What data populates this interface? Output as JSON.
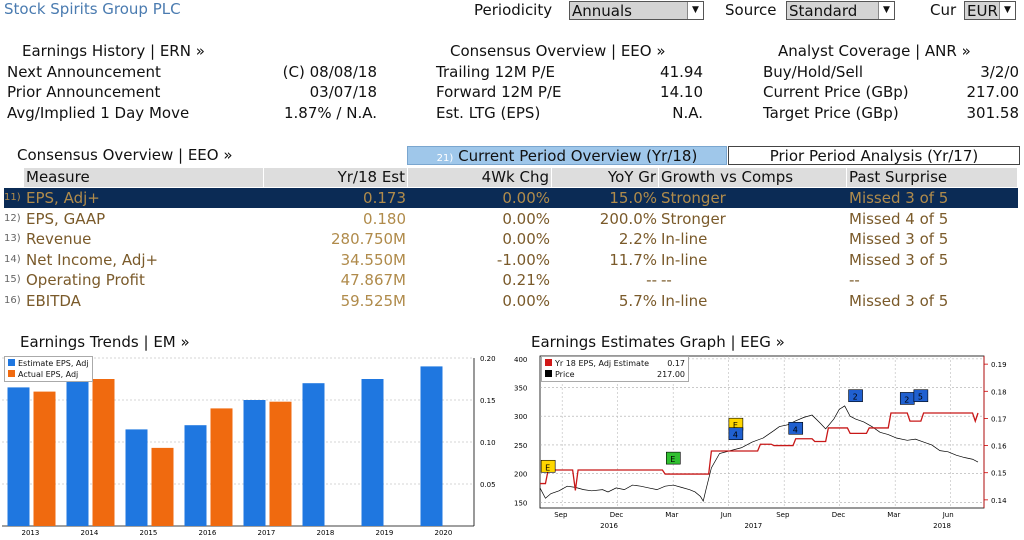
{
  "app_title": "Stock Spirits Group PLC",
  "controls": {
    "periodicity_label": "Periodicity",
    "periodicity_value": "Annuals",
    "source_label": "Source",
    "source_value": "Standard",
    "cur_label": "Cur",
    "cur_value": "EUR"
  },
  "earnings_history": {
    "header": "Earnings History | ERN »",
    "rows": [
      {
        "label": "Next Announcement",
        "value": "(C)  08/08/18"
      },
      {
        "label": "Prior Announcement",
        "value": "03/07/18"
      },
      {
        "label": "Avg/Implied 1 Day Move",
        "value": "1.87% / N.A."
      }
    ]
  },
  "consensus_top": {
    "header": "Consensus Overview | EEO »",
    "rows": [
      {
        "label": "Trailing 12M P/E",
        "value": "41.94"
      },
      {
        "label": "Forward 12M P/E",
        "value": "14.10"
      },
      {
        "label": "Est. LTG (EPS)",
        "value": "N.A."
      }
    ]
  },
  "analyst_coverage": {
    "header": "Analyst Coverage | ANR »",
    "rows": [
      {
        "label": "Buy/Hold/Sell",
        "value": "3/2/0"
      },
      {
        "label": "Current Price (GBp)",
        "value": "217.00"
      },
      {
        "label": "Target Price (GBp)",
        "value": "301.58"
      }
    ]
  },
  "consensus_table": {
    "section_label": "Consensus Overview | EEO »",
    "tab_current": "Current Period Overview (Yr/18)",
    "tab_current_num": "21)",
    "tab_prior": "Prior Period Analysis (Yr/17)",
    "columns": [
      "Measure",
      "Yr/18 Est",
      "4Wk Chg",
      "YoY Gr",
      "Growth vs Comps",
      "Past Surprise"
    ],
    "rows": [
      {
        "num": "11)",
        "measure": "EPS, Adj+",
        "est": "0.173",
        "chg": "0.00%",
        "yoy": "15.0%",
        "growth": "Stronger",
        "surprise": "Missed 3 of 5"
      },
      {
        "num": "12)",
        "measure": "EPS, GAAP",
        "est": "0.180",
        "chg": "0.00%",
        "yoy": "200.0%",
        "growth": "Stronger",
        "surprise": "Missed 4 of 5"
      },
      {
        "num": "13)",
        "measure": "Revenue",
        "est": "280.750M",
        "chg": "0.00%",
        "yoy": "2.2%",
        "growth": "In-line",
        "surprise": "Missed 3 of 5"
      },
      {
        "num": "14)",
        "measure": "Net Income, Adj+",
        "est": "34.550M",
        "chg": "-1.00%",
        "yoy": "11.7%",
        "growth": "In-line",
        "surprise": "Missed 3 of 5"
      },
      {
        "num": "15)",
        "measure": "Operating Profit",
        "est": "47.867M",
        "chg": "0.21%",
        "yoy": "--",
        "growth": "--",
        "surprise": "--"
      },
      {
        "num": "16)",
        "measure": "EBITDA",
        "est": "59.525M",
        "chg": "0.00%",
        "yoy": "5.7%",
        "growth": "In-line",
        "surprise": "Missed 3 of 5"
      }
    ]
  },
  "earnings_trends": {
    "title": "Earnings Trends | EM »",
    "legend": [
      "Estimate EPS, Adj",
      "Actual EPS, Adj"
    ],
    "colors": {
      "estimate": "#1f77e0",
      "actual": "#f06a0f"
    }
  },
  "estimates_graph": {
    "title": "Earnings Estimates Graph | EEG »",
    "legend": [
      {
        "name": "Yr 18 EPS, Adj Estimate",
        "value": "0.17",
        "color": "#d01818"
      },
      {
        "name": "Price",
        "value": "217.00",
        "color": "#000000"
      }
    ]
  },
  "chart_data": [
    {
      "type": "bar",
      "categories": [
        "2013",
        "2014",
        "2015",
        "2016",
        "2017",
        "2018",
        "2019",
        "2020"
      ],
      "series": [
        {
          "name": "Estimate EPS, Adj",
          "values": [
            0.165,
            0.175,
            0.115,
            0.12,
            0.15,
            0.17,
            0.175,
            0.19
          ]
        },
        {
          "name": "Actual EPS, Adj",
          "values": [
            0.16,
            0.175,
            0.093,
            0.14,
            0.148,
            null,
            null,
            null
          ]
        }
      ],
      "ylim": [
        0,
        0.2
      ],
      "yticks": [
        "0.05",
        "0.10",
        "0.15",
        "0.20"
      ],
      "y_axis_side": "right",
      "grid": true,
      "legend": "top-left"
    },
    {
      "type": "line",
      "x_ticks": [
        "Sep",
        "Dec",
        "Mar",
        "Jun",
        "Sep",
        "Dec",
        "Mar",
        "Jun"
      ],
      "x_year_labels": [
        "2016",
        "2017",
        "2018"
      ],
      "left_axis": {
        "ticks": [
          "150",
          "200",
          "250",
          "300",
          "350",
          "400"
        ],
        "range": [
          140,
          405
        ]
      },
      "right_axis": {
        "ticks": [
          "0.14",
          "0.15",
          "0.16",
          "0.17",
          "0.18",
          "0.19"
        ],
        "range": [
          0.137,
          0.193
        ]
      },
      "price_series": [
        [
          0,
          175
        ],
        [
          4,
          157
        ],
        [
          8,
          165
        ],
        [
          14,
          170
        ],
        [
          20,
          178
        ],
        [
          26,
          176
        ],
        [
          32,
          172
        ],
        [
          38,
          170
        ],
        [
          46,
          172
        ],
        [
          50,
          168
        ],
        [
          56,
          175
        ],
        [
          62,
          172
        ],
        [
          68,
          180
        ],
        [
          74,
          178
        ],
        [
          80,
          175
        ],
        [
          86,
          172
        ],
        [
          92,
          178
        ],
        [
          98,
          180
        ],
        [
          104,
          176
        ],
        [
          110,
          172
        ],
        [
          114,
          168
        ],
        [
          118,
          160
        ],
        [
          120,
          152
        ],
        [
          122,
          172
        ],
        [
          126,
          210
        ],
        [
          132,
          235
        ],
        [
          140,
          240
        ],
        [
          148,
          245
        ],
        [
          156,
          255
        ],
        [
          164,
          262
        ],
        [
          172,
          275
        ],
        [
          176,
          282
        ],
        [
          182,
          285
        ],
        [
          188,
          292
        ],
        [
          194,
          298
        ],
        [
          200,
          302
        ],
        [
          206,
          288
        ],
        [
          210,
          278
        ],
        [
          216,
          295
        ],
        [
          220,
          312
        ],
        [
          224,
          318
        ],
        [
          228,
          300
        ],
        [
          232,
          295
        ],
        [
          238,
          290
        ],
        [
          244,
          282
        ],
        [
          250,
          272
        ],
        [
          256,
          268
        ],
        [
          262,
          262
        ],
        [
          270,
          258
        ],
        [
          276,
          260
        ],
        [
          282,
          255
        ],
        [
          288,
          250
        ],
        [
          294,
          240
        ],
        [
          300,
          238
        ],
        [
          306,
          232
        ],
        [
          312,
          228
        ],
        [
          318,
          225
        ],
        [
          322,
          220
        ]
      ],
      "estimate_series": [
        [
          0,
          0.146
        ],
        [
          4,
          0.146
        ],
        [
          6,
          0.151
        ],
        [
          24,
          0.151
        ],
        [
          26,
          0.1435
        ],
        [
          28,
          0.151
        ],
        [
          90,
          0.151
        ],
        [
          92,
          0.1495
        ],
        [
          124,
          0.1495
        ],
        [
          126,
          0.158
        ],
        [
          160,
          0.158
        ],
        [
          162,
          0.1605
        ],
        [
          170,
          0.1605
        ],
        [
          172,
          0.16
        ],
        [
          186,
          0.16
        ],
        [
          188,
          0.1625
        ],
        [
          200,
          0.1625
        ],
        [
          202,
          0.1615
        ],
        [
          210,
          0.1615
        ],
        [
          212,
          0.1665
        ],
        [
          226,
          0.1665
        ],
        [
          228,
          0.1645
        ],
        [
          240,
          0.1645
        ],
        [
          242,
          0.1665
        ],
        [
          256,
          0.1665
        ],
        [
          258,
          0.172
        ],
        [
          270,
          0.172
        ],
        [
          272,
          0.169
        ],
        [
          280,
          0.169
        ],
        [
          282,
          0.172
        ],
        [
          318,
          0.172
        ],
        [
          320,
          0.169
        ],
        [
          322,
          0.172
        ]
      ],
      "markers": [
        {
          "label": "E",
          "color": "#ffd700"
        },
        {
          "label": "E",
          "color": "#30c030"
        },
        {
          "label": "E",
          "color": "#ffd700"
        },
        {
          "label": "4",
          "color": "#2060d0"
        },
        {
          "label": "4",
          "color": "#2060d0"
        },
        {
          "label": "2",
          "color": "#2060d0"
        },
        {
          "label": "2",
          "color": "#2060d0"
        },
        {
          "label": "5",
          "color": "#2060d0"
        }
      ]
    }
  ]
}
